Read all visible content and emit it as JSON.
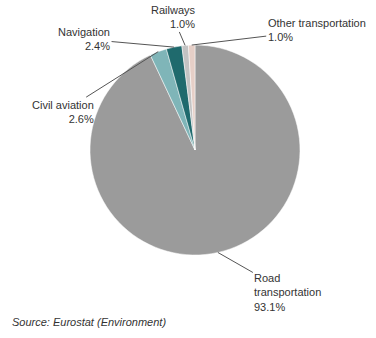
{
  "chart_data": {
    "type": "pie",
    "categories": [
      "Road transportation",
      "Civil aviation",
      "Navigation",
      "Railways",
      "Other transportation"
    ],
    "values": [
      93.1,
      2.6,
      2.4,
      1.0,
      1.0
    ],
    "value_labels": [
      "93.1%",
      "2.6%",
      "2.4%",
      "1.0%",
      "1.0%"
    ],
    "colors": [
      "#9b9b9b",
      "#7fb5b8",
      "#1f6a6d",
      "#c3c3c3",
      "#e6cfc7"
    ],
    "data_labels": true,
    "source": "Source: Eurostat (Environment)"
  }
}
